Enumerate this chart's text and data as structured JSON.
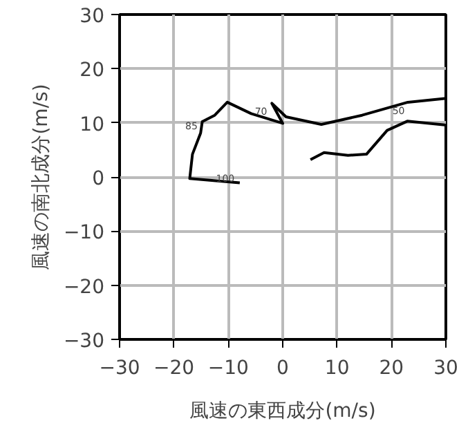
{
  "chart_data": {
    "type": "line",
    "xlabel": "風速の東西成分(m/s)",
    "ylabel": "風速の南北成分(m/s)",
    "x": [
      5.1,
      7.6,
      12,
      15.4,
      19.2,
      22.9,
      29.8,
      null,
      29.8,
      23,
      14.6,
      7.1,
      0.6,
      -2,
      0,
      -5.8,
      -10.2,
      -12.5,
      -14.8,
      -15.1,
      -16.6,
      -17.1,
      -7.9
    ],
    "series": [
      {
        "color": "#000000",
        "values": [
          3.2,
          4.5,
          4,
          4.2,
          8.6,
          10.3,
          9.6,
          null,
          14.5,
          13.8,
          11.4,
          9.7,
          11.1,
          13.6,
          9.9,
          11.7,
          13.8,
          11.4,
          10.2,
          8.1,
          4.2,
          -0.3,
          -1.1
        ]
      }
    ],
    "xlim": [
      -30,
      30
    ],
    "ylim": [
      -30,
      30
    ],
    "xticks": [
      -30,
      -20,
      -10,
      0,
      10,
      20,
      30
    ],
    "yticks": [
      -30,
      -20,
      -10,
      0,
      10,
      20,
      30
    ],
    "grid": true,
    "marker": "none",
    "line_style": "solid",
    "annotations": [
      {
        "text": "85",
        "x": -14.9,
        "y": 8.5
      },
      {
        "text": "70",
        "x": -2.1,
        "y": 11.2
      },
      {
        "text": "50",
        "x": 23.2,
        "y": 11.4
      },
      {
        "text": "100",
        "x": -8.1,
        "y": -1.1
      }
    ]
  }
}
